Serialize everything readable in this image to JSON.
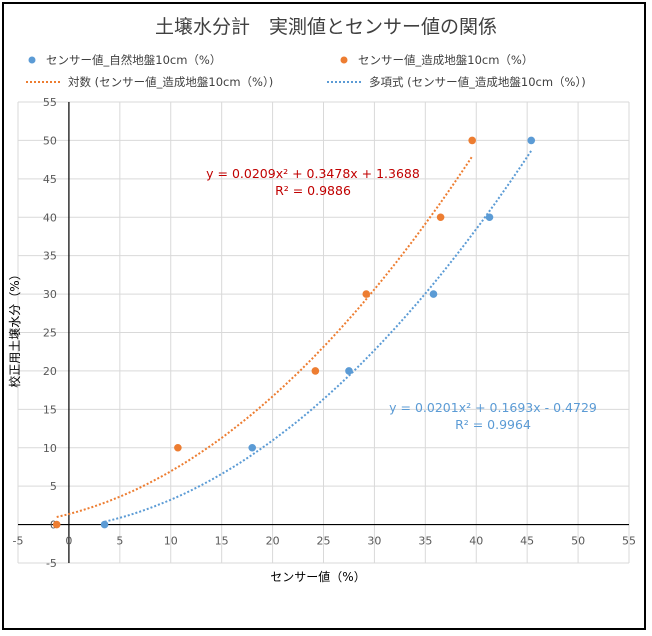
{
  "chart_data": {
    "type": "scatter",
    "title": "土壌水分計　実測値とセンサー値の関係",
    "xlabel": "センサー値（%）",
    "ylabel": "校正用土壌水分（%）",
    "xlim": [
      -5,
      55
    ],
    "ylim": [
      -5,
      55
    ],
    "xticks": [
      -5,
      0,
      5,
      10,
      15,
      20,
      25,
      30,
      35,
      40,
      45,
      50,
      55
    ],
    "yticks": [
      -5,
      0,
      5,
      10,
      15,
      20,
      25,
      30,
      35,
      40,
      45,
      50,
      55
    ],
    "grid": true,
    "legend_position": "top",
    "series": [
      {
        "name": "センサー値_自然地盤10cm（%）",
        "color": "#5b9bd5",
        "points": [
          [
            3.5,
            0
          ],
          [
            18,
            10
          ],
          [
            27.5,
            20
          ],
          [
            35.8,
            30
          ],
          [
            41.3,
            40
          ],
          [
            45.4,
            50
          ]
        ]
      },
      {
        "name": "センサー値_造成地盤10cm（%）",
        "color": "#ed7d31",
        "points": [
          [
            -1.2,
            0
          ],
          [
            10.7,
            10
          ],
          [
            24.2,
            20
          ],
          [
            29.2,
            30
          ],
          [
            36.5,
            40
          ],
          [
            39.6,
            50
          ]
        ]
      }
    ],
    "trendlines": [
      {
        "name": "対数 (センサー値_造成地盤10cm（%）)",
        "color": "#ed7d31",
        "coef": [
          0.0209,
          0.3478,
          1.3688
        ],
        "x_range": [
          -1.2,
          39.6
        ],
        "equation": "y = 0.0209x² + 0.3478x + 1.3688",
        "r2": "R² = 0.9886"
      },
      {
        "name": "多項式 (センサー値_造成地盤10cm（%）)",
        "color": "#5b9bd5",
        "coef": [
          0.0201,
          0.1693,
          -0.4729
        ],
        "x_range": [
          3.5,
          45.4
        ],
        "equation": "y = 0.0201x² + 0.1693x - 0.4729",
        "r2": "R² = 0.9964"
      }
    ]
  }
}
